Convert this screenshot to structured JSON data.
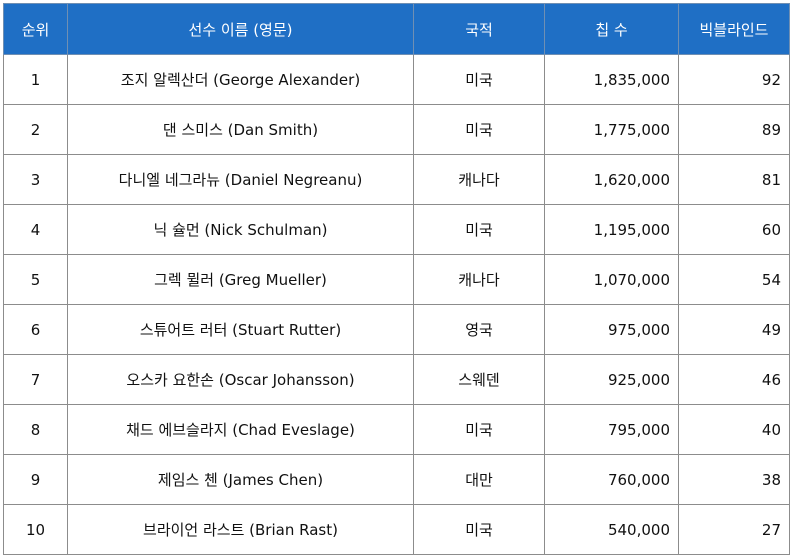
{
  "table": {
    "headers": {
      "rank": "순위",
      "name": "선수 이름 (영문)",
      "nationality": "국적",
      "chips": "칩 수",
      "big_blinds": "빅블라인드"
    },
    "rows": [
      {
        "rank": "1",
        "name": "조지 알렉산더 (George Alexander)",
        "nationality": "미국",
        "chips": "1,835,000",
        "big_blinds": "92"
      },
      {
        "rank": "2",
        "name": "댄 스미스 (Dan Smith)",
        "nationality": "미국",
        "chips": "1,775,000",
        "big_blinds": "89"
      },
      {
        "rank": "3",
        "name": "다니엘 네그라뉴 (Daniel Negreanu)",
        "nationality": "캐나다",
        "chips": "1,620,000",
        "big_blinds": "81"
      },
      {
        "rank": "4",
        "name": "닉 슐먼 (Nick Schulman)",
        "nationality": "미국",
        "chips": "1,195,000",
        "big_blinds": "60"
      },
      {
        "rank": "5",
        "name": "그렉 뮐러 (Greg Mueller)",
        "nationality": "캐나다",
        "chips": "1,070,000",
        "big_blinds": "54"
      },
      {
        "rank": "6",
        "name": "스튜어트 러터 (Stuart Rutter)",
        "nationality": "영국",
        "chips": "975,000",
        "big_blinds": "49"
      },
      {
        "rank": "7",
        "name": "오스카 요한손 (Oscar Johansson)",
        "nationality": "스웨덴",
        "chips": "925,000",
        "big_blinds": "46"
      },
      {
        "rank": "8",
        "name": "채드 에브슬라지 (Chad Eveslage)",
        "nationality": "미국",
        "chips": "795,000",
        "big_blinds": "40"
      },
      {
        "rank": "9",
        "name": "제임스 첸 (James Chen)",
        "nationality": "대만",
        "chips": "760,000",
        "big_blinds": "38"
      },
      {
        "rank": "10",
        "name": "브라이언 라스트 (Brian Rast)",
        "nationality": "미국",
        "chips": "540,000",
        "big_blinds": "27"
      }
    ]
  }
}
